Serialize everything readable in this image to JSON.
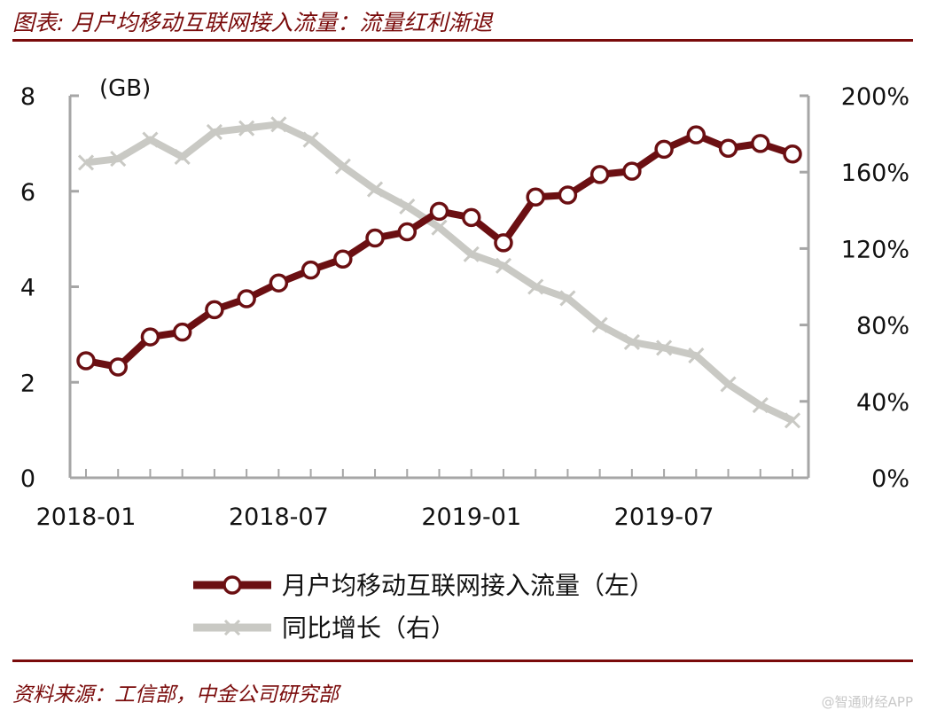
{
  "header": {
    "title": "图表: 月户均移动互联网接入流量：流量红利渐退"
  },
  "footer": {
    "source": "资料来源：工信部，中金公司研究部",
    "watermark": "@智通财经APP"
  },
  "colors": {
    "accent": "#7a0b0b",
    "series_primary": "#6b0f12",
    "series_secondary": "#c9c9c4"
  },
  "chart_data": {
    "type": "line",
    "x": [
      "2018-01",
      "2018-02",
      "2018-03",
      "2018-04",
      "2018-05",
      "2018-06",
      "2018-07",
      "2018-08",
      "2018-09",
      "2018-10",
      "2018-11",
      "2018-12",
      "2019-01",
      "2019-02",
      "2019-03",
      "2019-04",
      "2019-05",
      "2019-06",
      "2019-07",
      "2019-08",
      "2019-09",
      "2019-10",
      "2019-11"
    ],
    "x_tick_labels": [
      "2018-01",
      "2018-07",
      "2019-01",
      "2019-07"
    ],
    "y_left": {
      "unit_label": "(GB)",
      "ylim": [
        0,
        8
      ],
      "ticks": [
        "0",
        "2",
        "4",
        "6",
        "8"
      ]
    },
    "y_right": {
      "ylim": [
        0,
        200
      ],
      "ticks": [
        "0%",
        "40%",
        "80%",
        "120%",
        "160%",
        "200%"
      ]
    },
    "series": [
      {
        "name": "月户均移动互联网接入流量（左）",
        "axis": "left",
        "marker": "circle",
        "values": [
          2.45,
          2.32,
          2.95,
          3.05,
          3.52,
          3.75,
          4.08,
          4.35,
          4.58,
          5.02,
          5.15,
          5.58,
          5.45,
          4.92,
          5.88,
          5.92,
          6.35,
          6.42,
          6.88,
          7.18,
          6.9,
          7.0,
          6.78
        ]
      },
      {
        "name": "同比增长（右）",
        "axis": "right",
        "marker": "x",
        "values": [
          165,
          167,
          177,
          168,
          181,
          183,
          185,
          177,
          163,
          151,
          142,
          131,
          117,
          111,
          100,
          94,
          80,
          71,
          68,
          64,
          49,
          38,
          30
        ]
      }
    ],
    "legend_position": "bottom",
    "grid": false
  }
}
